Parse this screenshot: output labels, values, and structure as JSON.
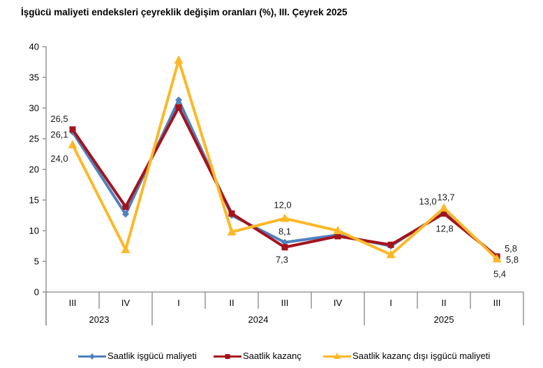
{
  "title": "İşgücü maliyeti endeksleri çeyreklik değişim oranları (%), III. Çeyrek 2025",
  "chart_data": {
    "type": "line",
    "title": "İşgücü maliyeti endeksleri çeyreklik değişim oranları (%), III. Çeyrek 2025",
    "xlabel": "",
    "ylabel": "",
    "ylim": [
      0,
      40
    ],
    "yticks": [
      "0",
      "5",
      "10",
      "15",
      "20",
      "25",
      "30",
      "35",
      "40"
    ],
    "yticks_values": [
      0,
      5,
      10,
      15,
      20,
      25,
      30,
      35,
      40
    ],
    "grid": false,
    "legend_position": "bottom",
    "categories": [
      "III",
      "IV",
      "I",
      "II",
      "III",
      "IV",
      "I",
      "II",
      "III"
    ],
    "years": [
      {
        "label": "2023",
        "span": 2
      },
      {
        "label": "2024",
        "span": 4
      },
      {
        "label": "2025",
        "span": 3
      }
    ],
    "series": [
      {
        "name": "Saatlik işgücü maliyeti",
        "color": "#4F81BD",
        "marker": "diamond",
        "values": [
          26.1,
          12.7,
          31.3,
          12.5,
          8.1,
          9.3,
          7.5,
          13.0,
          5.8
        ]
      },
      {
        "name": "Saatlik kazanç",
        "color": "#A6121C",
        "marker": "square",
        "values": [
          26.5,
          13.9,
          30.1,
          12.8,
          7.3,
          9.1,
          7.7,
          12.8,
          5.8
        ]
      },
      {
        "name": "Saatlik kazanç dışı işgücü maliyeti",
        "color": "#FDB827",
        "marker": "triangle",
        "values": [
          24.0,
          6.9,
          37.8,
          9.8,
          12.0,
          10.0,
          6.1,
          13.7,
          5.4
        ]
      }
    ],
    "data_labels": [
      {
        "series": 1,
        "index": 0,
        "text": "26,5"
      },
      {
        "series": 0,
        "index": 0,
        "text": "26,1"
      },
      {
        "series": 2,
        "index": 0,
        "text": "24,0"
      },
      {
        "series": 2,
        "index": 4,
        "text": "12,0"
      },
      {
        "series": 0,
        "index": 4,
        "text": "8,1"
      },
      {
        "series": 1,
        "index": 4,
        "text": "7,3"
      },
      {
        "series": 0,
        "index": 7,
        "text": "13,0"
      },
      {
        "series": 2,
        "index": 7,
        "text": "13,7"
      },
      {
        "series": 1,
        "index": 7,
        "text": "12,8"
      },
      {
        "series": 1,
        "index": 8,
        "text": "5,8"
      },
      {
        "series": 0,
        "index": 8,
        "text": "5,8"
      },
      {
        "series": 2,
        "index": 8,
        "text": "5,4"
      }
    ]
  }
}
